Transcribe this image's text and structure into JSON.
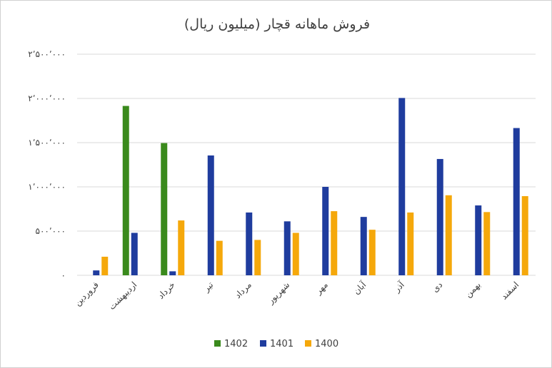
{
  "chart_data": {
    "type": "bar",
    "title": "فروش ماهانه قچار (میلیون ریال)",
    "categories": [
      "فروردین",
      "اردیبهشت",
      "خرداد",
      "تیر",
      "مرداد",
      "شهریور",
      "مهر",
      "آبان",
      "آذر",
      "دی",
      "بهمن",
      "اسفند"
    ],
    "series": [
      {
        "name": "1402",
        "color": "#3a8a1c",
        "values": [
          0,
          1915000,
          1495000,
          0,
          0,
          0,
          0,
          0,
          0,
          0,
          0,
          0
        ]
      },
      {
        "name": "1401",
        "color": "#1f3c9e",
        "values": [
          55000,
          480000,
          45000,
          1355000,
          710000,
          610000,
          1000000,
          660000,
          2005000,
          1315000,
          790000,
          1665000
        ]
      },
      {
        "name": "1400",
        "color": "#f5a80b",
        "values": [
          210000,
          0,
          620000,
          390000,
          400000,
          480000,
          725000,
          515000,
          710000,
          905000,
          715000,
          895000
        ]
      }
    ],
    "y_ticks": [
      0,
      500000,
      1000000,
      1500000,
      2000000,
      2500000
    ],
    "y_tick_labels": [
      "۰",
      "۵۰۰٬۰۰۰",
      "۱٬۰۰۰٬۰۰۰",
      "۱٬۵۰۰٬۰۰۰",
      "۲٬۰۰۰٬۰۰۰",
      "۲٬۵۰۰٬۰۰۰"
    ],
    "ylim": [
      0,
      2500000
    ],
    "grid": true,
    "legend_position": "bottom-center"
  }
}
